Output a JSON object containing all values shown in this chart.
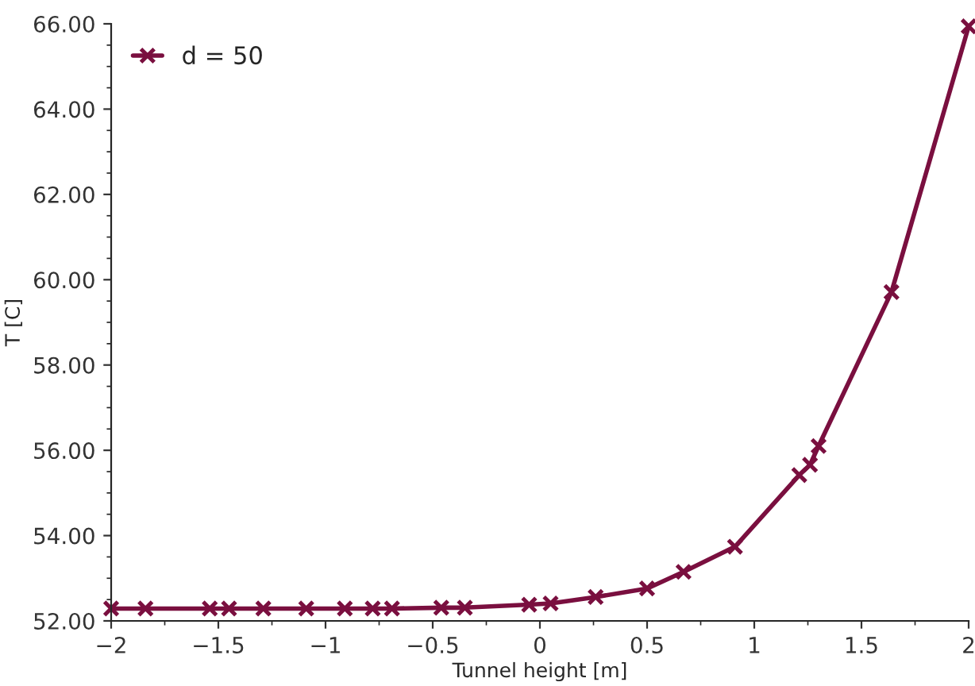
{
  "chart_data": {
    "type": "line",
    "xlabel": "Tunnel height [m]",
    "ylabel": "T [C]",
    "x": [
      -2,
      -1.84,
      -1.54,
      -1.45,
      -1.29,
      -1.09,
      -0.91,
      -0.78,
      -0.69,
      -0.46,
      -0.35,
      -0.05,
      0.05,
      0.26,
      0.5,
      0.67,
      0.91,
      1.21,
      1.26,
      1.3,
      1.64,
      2.0
    ],
    "series": [
      {
        "name": "d = 50",
        "color": "#7a0f3f",
        "values": [
          52.29,
          52.29,
          52.29,
          52.29,
          52.29,
          52.29,
          52.29,
          52.29,
          52.29,
          52.31,
          52.31,
          52.38,
          52.41,
          52.56,
          52.76,
          53.15,
          53.74,
          55.42,
          55.66,
          56.1,
          59.71,
          65.94
        ]
      }
    ],
    "xlim": [
      -2,
      2
    ],
    "xticks": [
      {
        "value": -2,
        "label": "−2"
      },
      {
        "value": -1.5,
        "label": "−1.5"
      },
      {
        "value": -1,
        "label": "−1"
      },
      {
        "value": -0.5,
        "label": "−0.5"
      },
      0,
      0.5,
      1,
      1.5,
      2
    ],
    "ylim": [
      52,
      66
    ],
    "yticks": [
      {
        "value": 52,
        "label": "52.00"
      },
      {
        "value": 54,
        "label": "54.00"
      },
      {
        "value": 56,
        "label": "56.00"
      },
      {
        "value": 58,
        "label": "58.00"
      },
      {
        "value": 60,
        "label": "60.00"
      },
      {
        "value": 62,
        "label": "62.00"
      },
      {
        "value": 64,
        "label": "64.00"
      },
      {
        "value": 66,
        "label": "66.00"
      }
    ],
    "marker": "cross",
    "line_style": "solid",
    "grid": false,
    "legend": "top left"
  }
}
